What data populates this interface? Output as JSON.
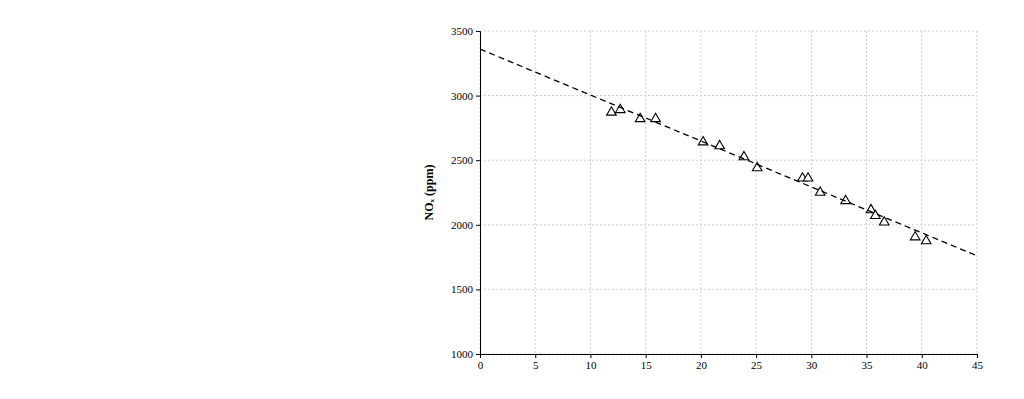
{
  "chart_data": {
    "type": "scatter",
    "y_label": "NOₓ (ppm)",
    "xlim": [
      0,
      45
    ],
    "xticks": [
      0,
      5,
      10,
      15,
      20,
      25,
      30,
      35,
      40,
      45
    ],
    "ylim": [
      1000,
      3500
    ],
    "yticks": [
      1000,
      1500,
      2000,
      2500,
      3000,
      3500
    ],
    "grid": true,
    "series": [
      {
        "type": "scatter",
        "marker": "triangle",
        "color": "#000000",
        "x": [
          11.9,
          12.7,
          14.5,
          15.9,
          20.2,
          21.7,
          23.9,
          25.1,
          29.2,
          29.7,
          30.8,
          33.1,
          35.4,
          35.8,
          36.6,
          39.4,
          40.4
        ],
        "values": [
          2870,
          2890,
          2820,
          2820,
          2640,
          2610,
          2525,
          2440,
          2360,
          2360,
          2250,
          2185,
          2115,
          2070,
          2020,
          1905,
          1875
        ]
      },
      {
        "type": "line",
        "line_style": "dashed",
        "color": "#000000",
        "x": [
          0,
          45
        ],
        "values": [
          3360,
          1760
        ]
      }
    ]
  }
}
